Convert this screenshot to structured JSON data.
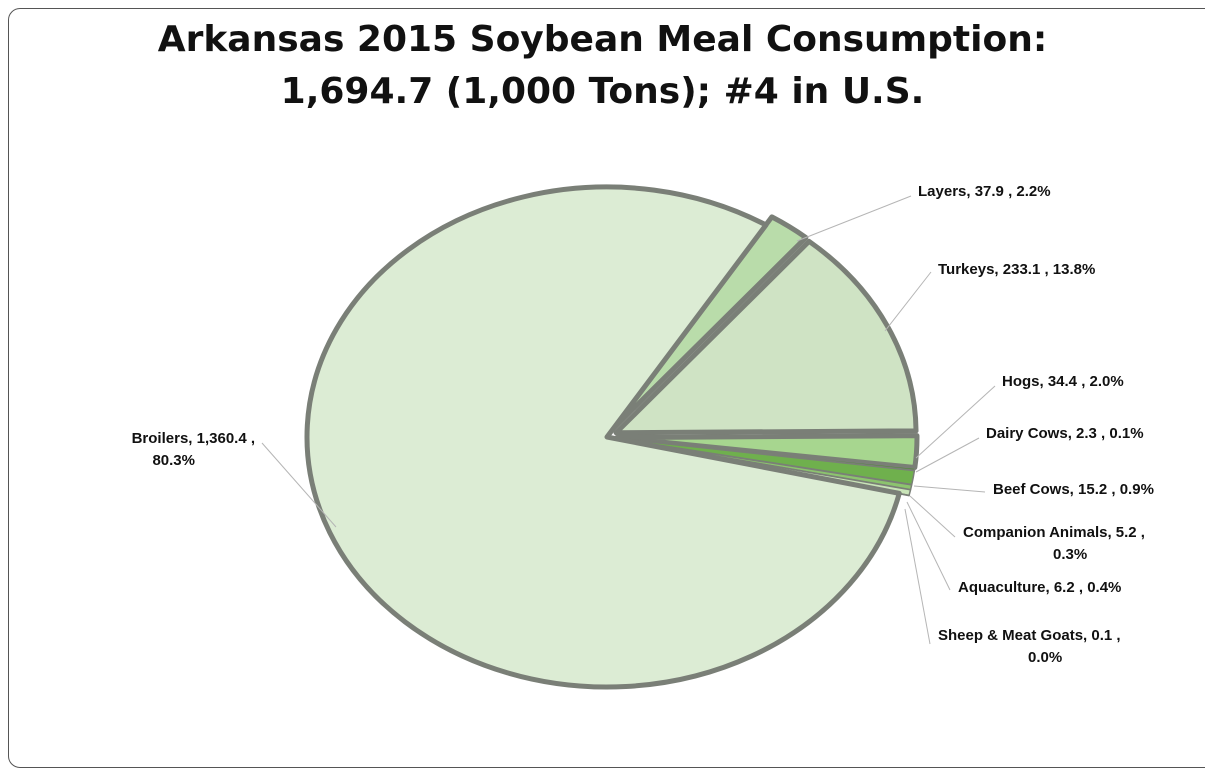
{
  "chart_data": {
    "type": "pie",
    "title_line1": "Arkansas 2015 Soybean Meal Consumption:",
    "title_line2": "1,694.7 (1,000 Tons); #4 in U.S.",
    "slices": [
      {
        "label": "Layers",
        "value": 37.9,
        "percent": "2.2%",
        "text": [
          "Layers, 37.9 , 2.2%"
        ],
        "color": "#b9dcaa",
        "exploded": true
      },
      {
        "label": "Turkeys",
        "value": 233.1,
        "percent": "13.8%",
        "text": [
          "Turkeys, 233.1 , 13.8%"
        ],
        "color": "#cfe3c4",
        "exploded": true
      },
      {
        "label": "Hogs",
        "value": 34.4,
        "percent": "2.0%",
        "text": [
          "Hogs, 34.4 , 2.0%"
        ],
        "color": "#a7d68f",
        "exploded": true
      },
      {
        "label": "Dairy Cows",
        "value": 2.3,
        "percent": "0.1%",
        "text": [
          "Dairy Cows, 2.3 , 0.1%"
        ],
        "color": "#4f8a36",
        "exploded": true
      },
      {
        "label": "Beef Cows",
        "value": 15.2,
        "percent": "0.9%",
        "text": [
          "Beef Cows, 15.2 , 0.9%"
        ],
        "color": "#6fb04d",
        "exploded": true
      },
      {
        "label": "Companion Animals",
        "value": 5.2,
        "percent": "0.3%",
        "text": [
          "Companion Animals, 5.2 ,",
          "0.3%"
        ],
        "color": "#8cc46e",
        "exploded": true
      },
      {
        "label": "Aquaculture",
        "value": 6.2,
        "percent": "0.4%",
        "text": [
          "Aquaculture, 6.2 , 0.4%"
        ],
        "color": "#c9e4b8",
        "exploded": true
      },
      {
        "label": "Sheep & Meat Goats",
        "value": 0.1,
        "percent": "0.0%",
        "text": [
          "Sheep & Meat Goats, 0.1 ,",
          "0.0%"
        ],
        "color": "#dbeed0",
        "exploded": true
      },
      {
        "label": "Broilers",
        "value": 1360.4,
        "percent": "80.3%",
        "text": [
          "Broilers, 1,360.4 ,",
          "80.3%"
        ],
        "color": "#dcecd4",
        "exploded": false
      }
    ]
  }
}
